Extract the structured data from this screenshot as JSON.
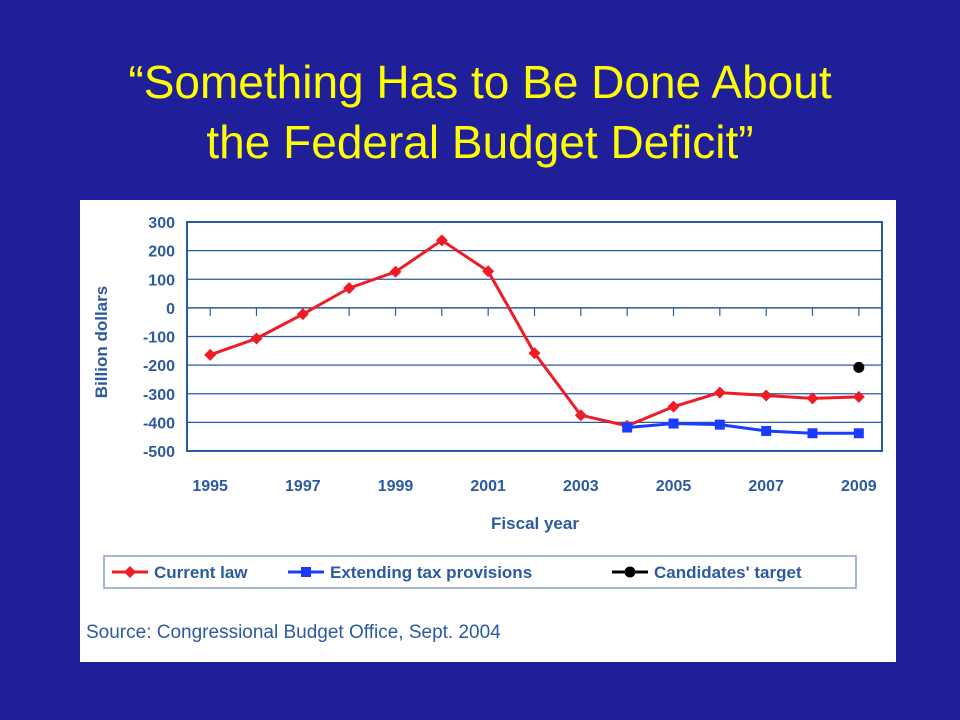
{
  "slide": {
    "title_line1": "“Something Has to Be Done About",
    "title_line2": "the Federal Budget Deficit”"
  },
  "chart_data": {
    "type": "line",
    "xlabel": "Fiscal year",
    "ylabel": "Billion dollars",
    "ylim": [
      -500,
      300
    ],
    "xlim": [
      1994.5,
      2009.5
    ],
    "yticks": [
      300,
      200,
      100,
      0,
      -100,
      -200,
      -300,
      -400,
      -500
    ],
    "xticks": [
      1995,
      1997,
      1999,
      2001,
      2003,
      2005,
      2007,
      2009
    ],
    "grid": "horizontal",
    "legend_position": "bottom",
    "series": [
      {
        "name": "Current law",
        "color": "#ee1c24",
        "marker": "diamond",
        "x": [
          1995,
          1996,
          1997,
          1998,
          1999,
          2000,
          2001,
          2002,
          2003,
          2004,
          2005,
          2006,
          2007,
          2008,
          2009
        ],
        "values": [
          -164,
          -107,
          -22,
          69,
          126,
          236,
          128,
          -158,
          -375,
          -412,
          -345,
          -296,
          -306,
          -316,
          -311
        ]
      },
      {
        "name": "Extending tax provisions",
        "color": "#1a3cff",
        "marker": "square",
        "x": [
          2004,
          2005,
          2006,
          2007,
          2008,
          2009
        ],
        "values": [
          -418,
          -404,
          -408,
          -430,
          -438,
          -438
        ]
      },
      {
        "name": "Candidates' target",
        "color": "#000000",
        "marker": "circle",
        "x": [
          2009
        ],
        "values": [
          -208
        ]
      }
    ],
    "source": "Source: Congressional Budget Office, Sept. 2004"
  }
}
